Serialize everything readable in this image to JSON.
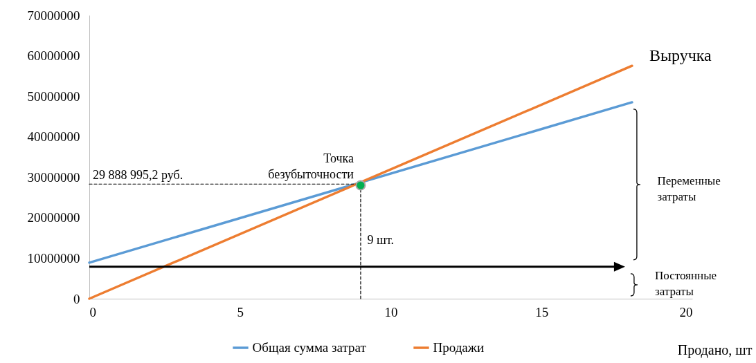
{
  "chart_data": {
    "type": "line",
    "xlabel": "Продано, шт",
    "xlim": [
      0,
      20
    ],
    "xticks": [
      0,
      5,
      10,
      15,
      20
    ],
    "ylim": [
      0,
      70000000
    ],
    "yticks": [
      0,
      10000000,
      20000000,
      30000000,
      40000000,
      50000000,
      60000000,
      70000000
    ],
    "grid": false,
    "legend": "bottom",
    "series": [
      {
        "name": "Общая сумма затрат",
        "color": "#5b9bd5",
        "x": [
          0,
          18
        ],
        "values": [
          8900000,
          48500000
        ]
      },
      {
        "name": "Продажи",
        "color": "#ed7d31",
        "x": [
          0,
          18
        ],
        "values": [
          0,
          57500000
        ]
      },
      {
        "color": "#000000",
        "line_style": "dashed",
        "x": [
          0,
          9
        ],
        "values": [
          28300000,
          28300000
        ]
      },
      {
        "color": "#000000",
        "line_style": "dashed",
        "x": [
          9,
          9
        ],
        "values": [
          0,
          28300000
        ]
      },
      {
        "type": "scatter",
        "color": "#00b050",
        "x": [
          9
        ],
        "values": [
          28000000
        ]
      }
    ],
    "annotations": [
      {
        "text": "29 888 995,2 руб.",
        "x": 0,
        "y": 28300000
      },
      {
        "text": "Точка безубыточности",
        "x": 9,
        "y": 28300000
      },
      "9 шт.",
      {
        "text": "Выручка",
        "x": 18,
        "y": 57500000
      },
      "Переменные затраты",
      "Постоянные затраты"
    ]
  }
}
